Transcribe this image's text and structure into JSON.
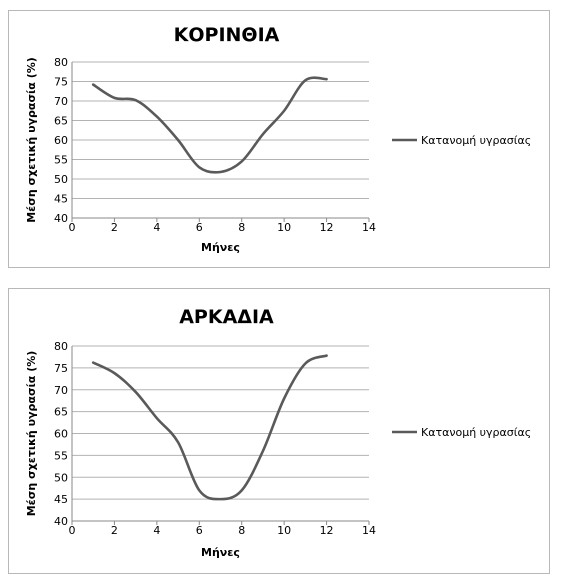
{
  "chart_data": [
    {
      "type": "line",
      "title": "ΚΟΡΙΝΘΙΑ",
      "xlabel": "Μήνες",
      "ylabel": "Μέση σχετική υγρασία (%)",
      "xlim": [
        0,
        14
      ],
      "ylim": [
        40,
        80
      ],
      "xticks": [
        "0",
        "2",
        "4",
        "6",
        "8",
        "10",
        "12",
        "14"
      ],
      "yticks": [
        "40",
        "45",
        "50",
        "55",
        "60",
        "65",
        "70",
        "75",
        "80"
      ],
      "grid": "horizontal",
      "legend_position": "right",
      "series": [
        {
          "name": "Κατανομή υγρασίας",
          "color": "#5a5a5a",
          "x": [
            1,
            2,
            3,
            4,
            5,
            6,
            7,
            8,
            9,
            10,
            11,
            12
          ],
          "y": [
            74.2,
            70.8,
            70.2,
            66.0,
            60.0,
            53.0,
            51.8,
            54.5,
            61.5,
            67.5,
            75.3,
            75.6
          ]
        }
      ]
    },
    {
      "type": "line",
      "title": "ΑΡΚΑΔΙΑ",
      "xlabel": "Μήνες",
      "ylabel": "Μέση σχετική υγρασία (%)",
      "xlim": [
        0,
        14
      ],
      "ylim": [
        40,
        80
      ],
      "xticks": [
        "0",
        "2",
        "4",
        "6",
        "8",
        "10",
        "12",
        "14"
      ],
      "yticks": [
        "40",
        "45",
        "50",
        "55",
        "60",
        "65",
        "70",
        "75",
        "80"
      ],
      "grid": "horizontal",
      "legend_position": "right",
      "series": [
        {
          "name": "Κατανομή υγρασίας",
          "color": "#5a5a5a",
          "x": [
            1,
            2,
            3,
            4,
            5,
            6,
            7,
            8,
            9,
            10,
            11,
            12
          ],
          "y": [
            76.2,
            73.8,
            69.5,
            63.5,
            58.0,
            47.0,
            45.0,
            47.0,
            56.0,
            68.0,
            76.0,
            77.8
          ]
        }
      ]
    }
  ]
}
